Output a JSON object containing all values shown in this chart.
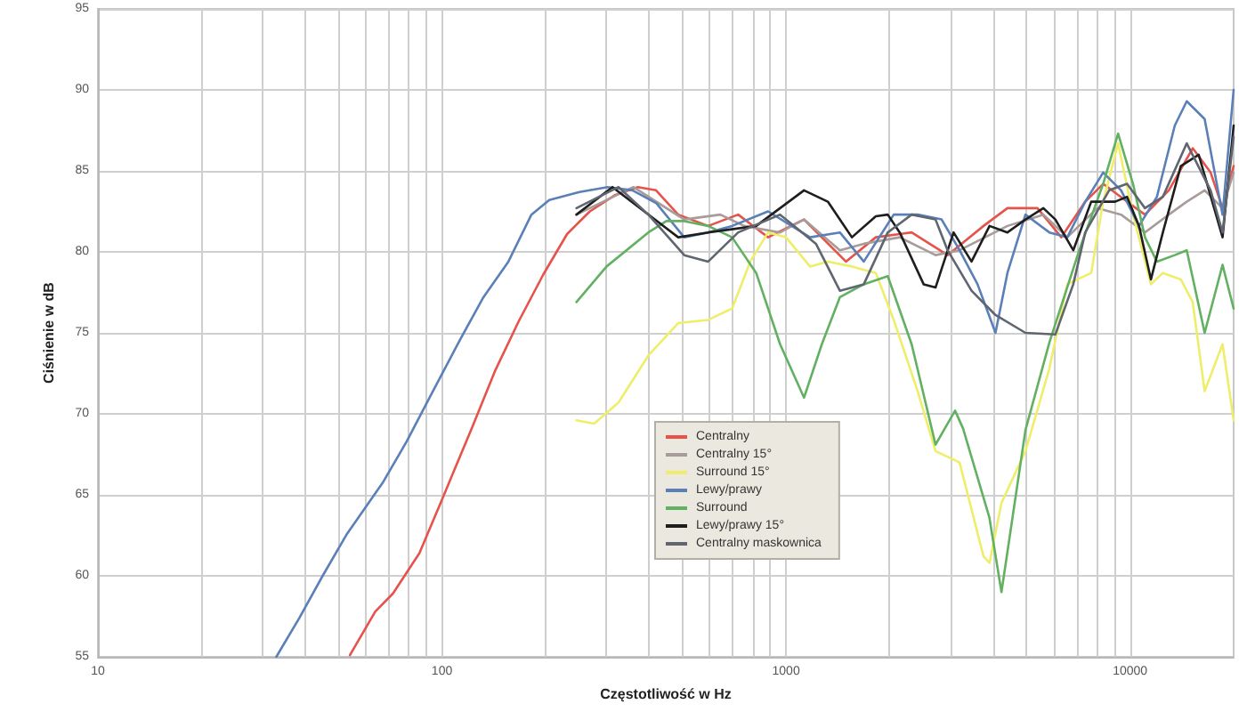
{
  "chart_data": {
    "type": "line",
    "xlabel": "Częstotliwość w Hz",
    "ylabel": "Ciśnienie w dB",
    "log": "x",
    "grid": true,
    "legend": "bottom",
    "marker": "none",
    "line_style": "solid",
    "xlim": [
      10,
      20000
    ],
    "xticks": [
      10,
      {
        "value": 20,
        "label": null
      },
      {
        "value": 30,
        "label": null
      },
      {
        "value": 40,
        "label": null
      },
      {
        "value": 50,
        "label": null
      },
      {
        "value": 60,
        "label": null
      },
      {
        "value": 70,
        "label": null
      },
      {
        "value": 80,
        "label": null
      },
      {
        "value": 90,
        "label": null
      },
      100,
      {
        "value": 200,
        "label": null
      },
      {
        "value": 300,
        "label": null
      },
      {
        "value": 400,
        "label": null
      },
      {
        "value": 500,
        "label": null
      },
      {
        "value": 600,
        "label": null
      },
      {
        "value": 700,
        "label": null
      },
      {
        "value": 800,
        "label": null
      },
      {
        "value": 900,
        "label": null
      },
      1000,
      {
        "value": 2000,
        "label": null
      },
      {
        "value": 3000,
        "label": null
      },
      {
        "value": 4000,
        "label": null
      },
      {
        "value": 5000,
        "label": null
      },
      {
        "value": 6000,
        "label": null
      },
      {
        "value": 7000,
        "label": null
      },
      {
        "value": 8000,
        "label": null
      },
      {
        "value": 9000,
        "label": null
      },
      10000
    ],
    "ylim": [
      55,
      95
    ],
    "yticks": [
      55,
      60,
      65,
      70,
      75,
      80,
      85,
      90,
      95
    ],
    "series": [
      {
        "name": "Centralny",
        "color": "#e5534b",
        "x": [
          54,
          64,
          72,
          86,
          100,
          122,
          143,
          167,
          197,
          231,
          269,
          318,
          371,
          419,
          486,
          594,
          726,
          887,
          1128,
          1493,
          1824,
          2318,
          2949,
          3750,
          4401,
          5379,
          6312,
          7407,
          8352,
          9800,
          11048,
          12963,
          15209,
          17145,
          18571,
          20000
        ],
        "values": [
          55.1,
          57.8,
          58.9,
          61.4,
          64.7,
          69.1,
          72.7,
          75.7,
          78.6,
          81.1,
          82.5,
          83.5,
          84.0,
          83.8,
          82.3,
          81.6,
          82.3,
          80.9,
          82.0,
          79.4,
          80.9,
          81.2,
          79.8,
          81.6,
          82.7,
          82.7,
          80.9,
          83.1,
          84.2,
          83.1,
          82.3,
          83.8,
          86.4,
          84.9,
          82.7,
          85.3
        ]
      },
      {
        "name": "Centralny 15°",
        "color": "#a89c9a",
        "x": [
          246,
          360,
          506,
          644,
          756,
          961,
          1128,
          1434,
          1683,
          2140,
          2720,
          3195,
          4401,
          5598,
          6570,
          8024,
          9416,
          11048,
          12963,
          14613,
          16474,
          18571,
          20000
        ],
        "values": [
          82.3,
          84.0,
          82.0,
          82.3,
          81.6,
          81.2,
          82.0,
          80.1,
          80.5,
          80.9,
          79.8,
          80.1,
          81.6,
          82.3,
          80.9,
          82.7,
          82.3,
          81.2,
          82.3,
          83.1,
          83.8,
          82.7,
          84.9
        ]
      },
      {
        "name": "Surround 15°",
        "color": "#eeee6a",
        "x": [
          246,
          277,
          326,
          398,
          486,
          594,
          697,
          787,
          887,
          1000,
          1174,
          1323,
          1554,
          1824,
          2056,
          2413,
          2720,
          3195,
          3750,
          3904,
          4229,
          4966,
          5827,
          6570,
          7710,
          8352,
          9230,
          10200,
          11499,
          12455,
          14041,
          15209,
          16474,
          18571,
          20000
        ],
        "values": [
          69.6,
          69.4,
          70.7,
          73.6,
          75.6,
          75.8,
          76.5,
          79.4,
          81.2,
          80.9,
          79.1,
          79.4,
          79.1,
          78.7,
          75.8,
          71.4,
          67.7,
          67.0,
          61.2,
          60.8,
          64.5,
          67.7,
          72.8,
          78.0,
          78.7,
          83.1,
          86.7,
          82.3,
          78.0,
          78.7,
          78.3,
          76.9,
          71.4,
          74.3,
          69.6
        ]
      },
      {
        "name": "Lewy/prawy",
        "color": "#5b80b8",
        "x": [
          33,
          38.5,
          45,
          53,
          67.5,
          79,
          92,
          113,
          132,
          156,
          182,
          205,
          251,
          303,
          358,
          420,
          506,
          594,
          697,
          887,
          1174,
          1434,
          1683,
          2056,
          2413,
          2833,
          3195,
          3603,
          4063,
          4401,
          4966,
          5827,
          6570,
          7407,
          8352,
          9416,
          10616,
          11967,
          13491,
          14613,
          16474,
          18571,
          20000
        ],
        "values": [
          55.0,
          57.4,
          60.0,
          62.6,
          65.8,
          68.3,
          71.0,
          74.6,
          77.2,
          79.4,
          82.3,
          83.2,
          83.7,
          84.0,
          83.8,
          83.0,
          80.9,
          81.2,
          81.6,
          82.5,
          80.9,
          81.2,
          79.4,
          82.3,
          82.3,
          82.0,
          80.1,
          78.0,
          75.0,
          78.7,
          82.3,
          81.2,
          80.9,
          83.1,
          84.9,
          83.8,
          81.6,
          83.4,
          87.8,
          89.3,
          88.2,
          82.3,
          90.0
        ]
      },
      {
        "name": "Surround",
        "color": "#62b062",
        "x": [
          246,
          301,
          398,
          449,
          506,
          594,
          697,
          819,
          961,
          1128,
          1271,
          1434,
          1683,
          1976,
          2318,
          2720,
          3100,
          3270,
          3900,
          4229,
          4966,
          5827,
          7117,
          8352,
          9230,
          10200,
          11048,
          11967,
          13491,
          14613,
          16474,
          18571,
          20000
        ],
        "values": [
          76.9,
          79.1,
          81.2,
          81.9,
          81.9,
          81.6,
          80.9,
          78.7,
          74.3,
          71.0,
          74.3,
          77.2,
          78.0,
          78.5,
          74.3,
          68.1,
          70.2,
          69.1,
          63.6,
          59.0,
          69.0,
          74.4,
          80.1,
          84.2,
          87.3,
          84.2,
          80.9,
          79.4,
          79.8,
          80.1,
          75.0,
          79.2,
          76.5
        ]
      },
      {
        "name": "Lewy/prawy 15°",
        "color": "#1e1e1e",
        "x": [
          246,
          313,
          486,
          594,
          819,
          1128,
          1323,
          1554,
          1824,
          1976,
          2140,
          2512,
          2720,
          3069,
          3461,
          3904,
          4401,
          4966,
          5598,
          6065,
          6838,
          7710,
          9047,
          9800,
          10616,
          11499,
          12455,
          14041,
          15829,
          18571,
          20000
        ],
        "values": [
          82.3,
          84.0,
          80.9,
          81.2,
          81.6,
          83.8,
          83.1,
          80.9,
          82.2,
          82.3,
          81.2,
          78.0,
          77.8,
          81.2,
          79.4,
          81.6,
          81.2,
          82.0,
          82.7,
          82.0,
          80.1,
          83.1,
          83.1,
          83.4,
          81.6,
          78.3,
          81.2,
          85.3,
          86.0,
          80.9,
          87.8
        ]
      },
      {
        "name": "Centralny maskownica",
        "color": "#5f6670",
        "x": [
          246,
          326,
          398,
          506,
          594,
          726,
          961,
          1222,
          1434,
          1683,
          1976,
          2318,
          2720,
          2949,
          3461,
          4063,
          4966,
          6065,
          6838,
          7407,
          8692,
          9800,
          11048,
          12455,
          14613,
          17145,
          18571,
          20000
        ],
        "values": [
          82.7,
          84.0,
          82.3,
          79.8,
          79.4,
          81.2,
          82.3,
          80.5,
          77.6,
          78.0,
          81.2,
          82.3,
          82.0,
          80.1,
          77.6,
          76.1,
          75.0,
          74.9,
          78.0,
          81.2,
          83.8,
          84.2,
          82.7,
          83.4,
          86.7,
          83.8,
          81.2,
          87.1
        ]
      }
    ]
  }
}
